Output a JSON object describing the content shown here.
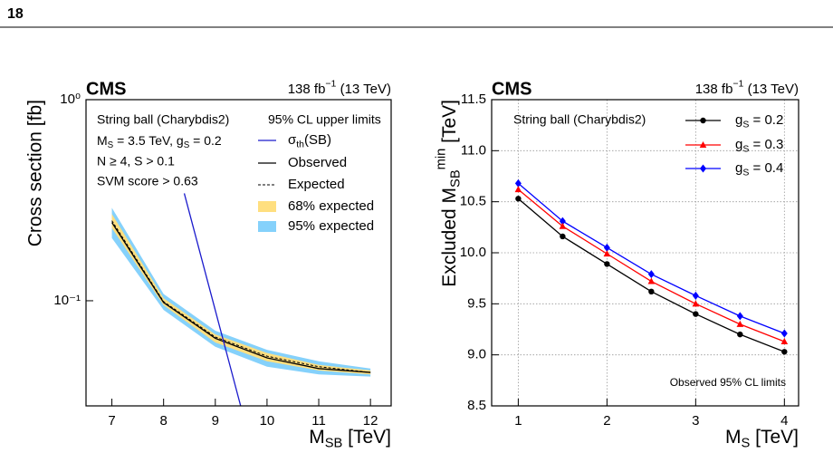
{
  "page": {
    "number": "18"
  },
  "chart_data": [
    {
      "type": "line",
      "title": "CMS",
      "lumi": "138 fb−1 (13 TeV)",
      "x_label": "MSB [TeV]",
      "y_label": "Cross section [fb]",
      "annotations": [
        "String ball (Charybdis2)",
        "MS = 3.5 TeV, gS = 0.2",
        "N ≥ 4, S > 0.1",
        "SVM score > 0.63"
      ],
      "legend_title": "95% CL upper limits",
      "log_y": true,
      "grid": false,
      "xlim": [
        6.5,
        12.4
      ],
      "xticks": [
        7,
        8,
        9,
        10,
        11,
        12
      ],
      "ylim": [
        0.03,
        1
      ],
      "yticks": [
        {
          "value": 1,
          "label": "10⁰"
        },
        {
          "value": 0.1,
          "label": "10⁻¹"
        }
      ],
      "x": [
        7,
        8,
        9,
        10,
        11,
        12
      ],
      "series": [
        {
          "name": "σth(SB)",
          "style": "line",
          "color": "#1a1acc",
          "x": [
            8.4,
            9.49
          ],
          "values": [
            0.342,
            0.03
          ]
        },
        {
          "name": "Observed",
          "style": "line",
          "color": "#000000",
          "values": [
            0.245,
            0.098,
            0.065,
            0.052,
            0.046,
            0.044
          ]
        },
        {
          "name": "Expected",
          "style": "dashed",
          "color": "#000000",
          "values": [
            0.25,
            0.099,
            0.066,
            0.053,
            0.047,
            0.044
          ]
        },
        {
          "name": "68% expected",
          "style": "band",
          "color": "#ffdf7f",
          "low": [
            0.23,
            0.095,
            0.062,
            0.05,
            0.045,
            0.043
          ],
          "high": [
            0.27,
            0.103,
            0.068,
            0.055,
            0.048,
            0.045
          ]
        },
        {
          "name": "95% expected",
          "style": "band",
          "color": "#85d1fb",
          "low": [
            0.205,
            0.09,
            0.059,
            0.047,
            0.043,
            0.042
          ],
          "high": [
            0.29,
            0.108,
            0.071,
            0.057,
            0.05,
            0.046
          ]
        }
      ]
    },
    {
      "type": "line",
      "title": "CMS",
      "lumi": "138 fb−1 (13 TeV)",
      "x_label": "MS [TeV]",
      "y_label": "Excluded MSBmin [TeV]",
      "annotations": [
        "String ball (Charybdis2)",
        "Observed 95% CL limits"
      ],
      "log_y": false,
      "grid": true,
      "xlim": [
        0.7,
        4.16
      ],
      "xticks": [
        1,
        2,
        3,
        4
      ],
      "ylim": [
        8.5,
        11.5
      ],
      "yticks": [
        8.5,
        {
          "value": 9,
          "label": "9.0"
        },
        9.5,
        {
          "value": 10,
          "label": "10.0"
        },
        10.5,
        {
          "value": 11,
          "label": "11.0"
        },
        11.5
      ],
      "x": [
        1,
        1.5,
        2,
        2.5,
        3,
        3.5,
        4
      ],
      "series": [
        {
          "name": "gS = 0.2",
          "style": "line",
          "marker": "circle",
          "color": "#000000",
          "values": [
            10.53,
            10.16,
            9.89,
            9.62,
            9.4,
            9.2,
            9.03
          ]
        },
        {
          "name": "gS = 0.3",
          "style": "line",
          "marker": "triangle",
          "color": "#ff0000",
          "values": [
            10.62,
            10.26,
            9.99,
            9.72,
            9.5,
            9.3,
            9.13
          ]
        },
        {
          "name": "gS = 0.4",
          "style": "line",
          "marker": "diamond",
          "color": "#0000ff",
          "values": [
            10.68,
            10.31,
            10.05,
            9.79,
            9.58,
            9.38,
            9.21
          ]
        }
      ]
    }
  ]
}
